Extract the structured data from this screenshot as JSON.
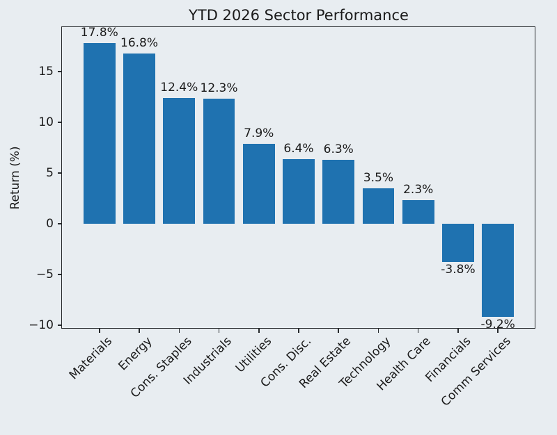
{
  "chart_data": {
    "type": "bar",
    "title": "YTD 2026 Sector Performance",
    "xlabel": "",
    "ylabel": "Return (%)",
    "categories": [
      "Materials",
      "Energy",
      "Cons. Staples",
      "Industrials",
      "Utilities",
      "Cons. Disc.",
      "Real Estate",
      "Technology",
      "Health Care",
      "Financials",
      "Comm Services"
    ],
    "values": [
      17.8,
      16.8,
      12.4,
      12.3,
      7.9,
      6.4,
      6.3,
      3.5,
      2.3,
      -3.8,
      -9.2
    ],
    "bar_labels": [
      "17.8%",
      "16.8%",
      "12.4%",
      "12.3%",
      "7.9%",
      "6.4%",
      "6.3%",
      "3.5%",
      "2.3%",
      "-3.8%",
      "-9.2%"
    ],
    "y_tick_values": [
      -10,
      -5,
      0,
      5,
      10,
      15
    ],
    "y_tick_labels": [
      "−10",
      "−5",
      "0",
      "5",
      "10",
      "15"
    ],
    "ylim": [
      -10.34,
      19.38
    ],
    "xlim": [
      -0.94,
      10.94
    ],
    "bar_width": 0.8,
    "grid": false,
    "legend_position": "none",
    "colors": {
      "bar": "#1f72b0",
      "background": "#e8edf1",
      "text": "#1a1a1a",
      "spine": "#26292c"
    }
  }
}
